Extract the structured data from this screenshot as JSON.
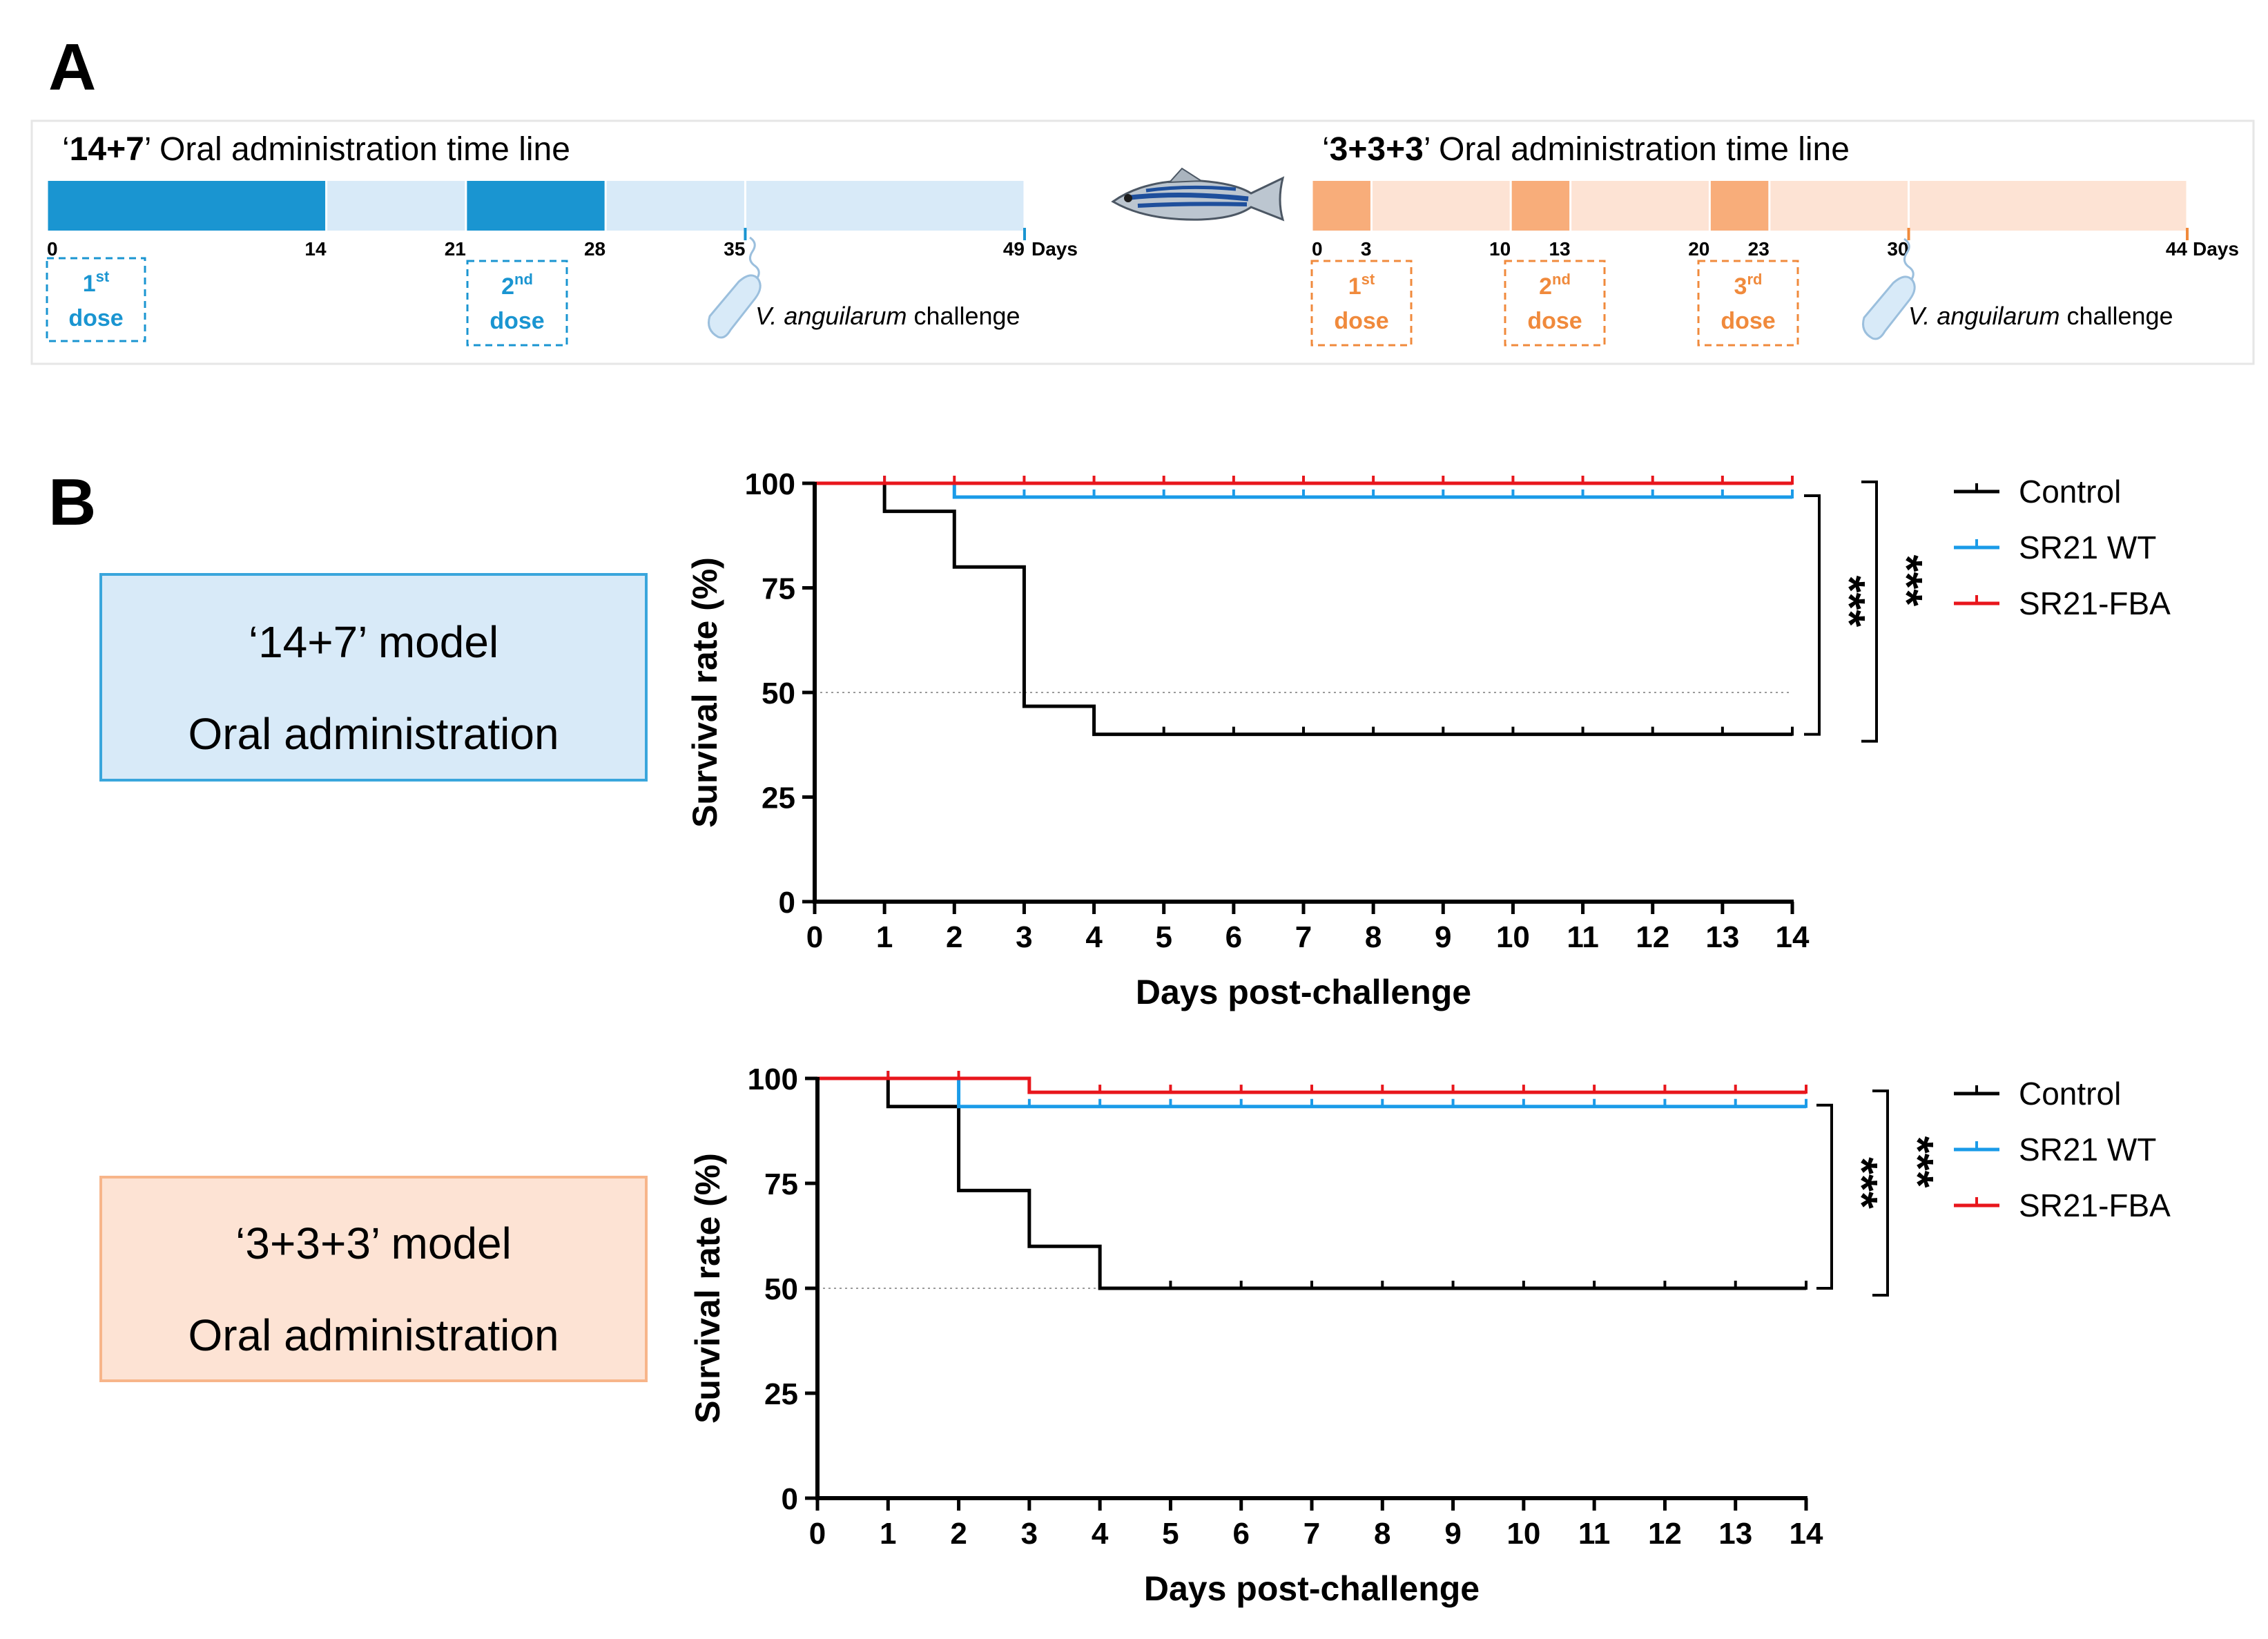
{
  "panel_a": {
    "letter": "A",
    "left": {
      "title_bold": "14+7",
      "title_rest": " Oral administration  time line",
      "quote_open": "‘",
      "quote_close": "’",
      "ticks": [
        "0",
        "14",
        "21",
        "28",
        "35",
        "49"
      ],
      "days_label": "Days",
      "doses": [
        {
          "word": "1",
          "sup": "st",
          "label": "dose"
        },
        {
          "word": "2",
          "sup": "nd",
          "label": "dose"
        }
      ],
      "challenge_italic": "V. anguilarum",
      "challenge_rest": " challenge",
      "color_dark": "#1a95d1",
      "color_light": "#d8eaf8"
    },
    "right": {
      "title_bold": "3+3+3",
      "title_rest": " Oral administration  time line",
      "quote_open": "‘",
      "quote_close": "’",
      "ticks": [
        "0",
        "3",
        "10",
        "13",
        "20",
        "23",
        "30",
        "44"
      ],
      "days_label": "Days",
      "doses": [
        {
          "word": "1",
          "sup": "st",
          "label": "dose"
        },
        {
          "word": "2",
          "sup": "nd",
          "label": "dose"
        },
        {
          "word": "3",
          "sup": "rd",
          "label": "dose"
        }
      ],
      "challenge_italic": "V. anguilarum",
      "challenge_rest": " challenge",
      "color_dark": "#f8ad7a",
      "color_light": "#fde3d4"
    }
  },
  "panel_b": {
    "letter": "B",
    "models": [
      {
        "line1": "‘14+7’ model",
        "line2": "Oral administration",
        "bg": "#d8eaf8",
        "border": "#3aa6dc"
      },
      {
        "line1": "‘3+3+3’ model",
        "line2": "Oral administration",
        "bg": "#fde3d4",
        "border": "#f7b58a"
      }
    ]
  },
  "chart_data": [
    {
      "type": "line",
      "subtype": "kaplan-meier step",
      "title": "",
      "xlabel": "Days post-challenge",
      "ylabel": "Survival rate (%)",
      "xlim": [
        0,
        14
      ],
      "ylim": [
        0,
        100
      ],
      "x_ticks": [
        "0",
        "1",
        "2",
        "3",
        "4",
        "5",
        "6",
        "7",
        "8",
        "9",
        "10",
        "11",
        "12",
        "13",
        "14"
      ],
      "y_ticks": [
        "0",
        "25",
        "50",
        "75",
        "100"
      ],
      "reference_line": 50,
      "series": [
        {
          "name": "Control",
          "color": "#000000",
          "x": [
            0,
            1,
            2,
            3,
            4,
            5,
            6,
            7,
            8,
            9,
            10,
            11,
            12,
            13,
            14
          ],
          "values": [
            100,
            93.3,
            80,
            46.7,
            40,
            40,
            40,
            40,
            40,
            40,
            40,
            40,
            40,
            40,
            40
          ]
        },
        {
          "name": "SR21 WT",
          "color": "#1a9be8",
          "x": [
            0,
            1,
            2,
            3,
            4,
            5,
            6,
            7,
            8,
            9,
            10,
            11,
            12,
            13,
            14
          ],
          "values": [
            100,
            100,
            96.7,
            96.7,
            96.7,
            96.7,
            96.7,
            96.7,
            96.7,
            96.7,
            96.7,
            96.7,
            96.7,
            96.7,
            96.7
          ]
        },
        {
          "name": "SR21-FBA",
          "color": "#e8161c",
          "x": [
            0,
            1,
            2,
            3,
            4,
            5,
            6,
            7,
            8,
            9,
            10,
            11,
            12,
            13,
            14
          ],
          "values": [
            100,
            100,
            100,
            100,
            100,
            100,
            100,
            100,
            100,
            100,
            100,
            100,
            100,
            100,
            100
          ]
        }
      ],
      "significance": [
        "***",
        "***"
      ]
    },
    {
      "type": "line",
      "subtype": "kaplan-meier step",
      "title": "",
      "xlabel": "Days post-challenge",
      "ylabel": "Survival rate (%)",
      "xlim": [
        0,
        14
      ],
      "ylim": [
        0,
        100
      ],
      "x_ticks": [
        "0",
        "1",
        "2",
        "3",
        "4",
        "5",
        "6",
        "7",
        "8",
        "9",
        "10",
        "11",
        "12",
        "13",
        "14"
      ],
      "y_ticks": [
        "0",
        "25",
        "50",
        "75",
        "100"
      ],
      "reference_line": 50,
      "series": [
        {
          "name": "Control",
          "color": "#000000",
          "x": [
            0,
            1,
            2,
            3,
            4,
            5,
            6,
            7,
            8,
            9,
            10,
            11,
            12,
            13,
            14
          ],
          "values": [
            100,
            93.3,
            73.3,
            60,
            50,
            50,
            50,
            50,
            50,
            50,
            50,
            50,
            50,
            50,
            50
          ]
        },
        {
          "name": "SR21 WT",
          "color": "#1a9be8",
          "x": [
            0,
            1,
            2,
            3,
            4,
            5,
            6,
            7,
            8,
            9,
            10,
            11,
            12,
            13,
            14
          ],
          "values": [
            100,
            100,
            93.3,
            93.3,
            93.3,
            93.3,
            93.3,
            93.3,
            93.3,
            93.3,
            93.3,
            93.3,
            93.3,
            93.3,
            93.3
          ]
        },
        {
          "name": "SR21-FBA",
          "color": "#e8161c",
          "x": [
            0,
            1,
            2,
            3,
            4,
            5,
            6,
            7,
            8,
            9,
            10,
            11,
            12,
            13,
            14
          ],
          "values": [
            100,
            100,
            100,
            96.7,
            96.7,
            96.7,
            96.7,
            96.7,
            96.7,
            96.7,
            96.7,
            96.7,
            96.7,
            96.7,
            96.7
          ]
        }
      ],
      "significance": [
        "***",
        "***"
      ]
    }
  ]
}
